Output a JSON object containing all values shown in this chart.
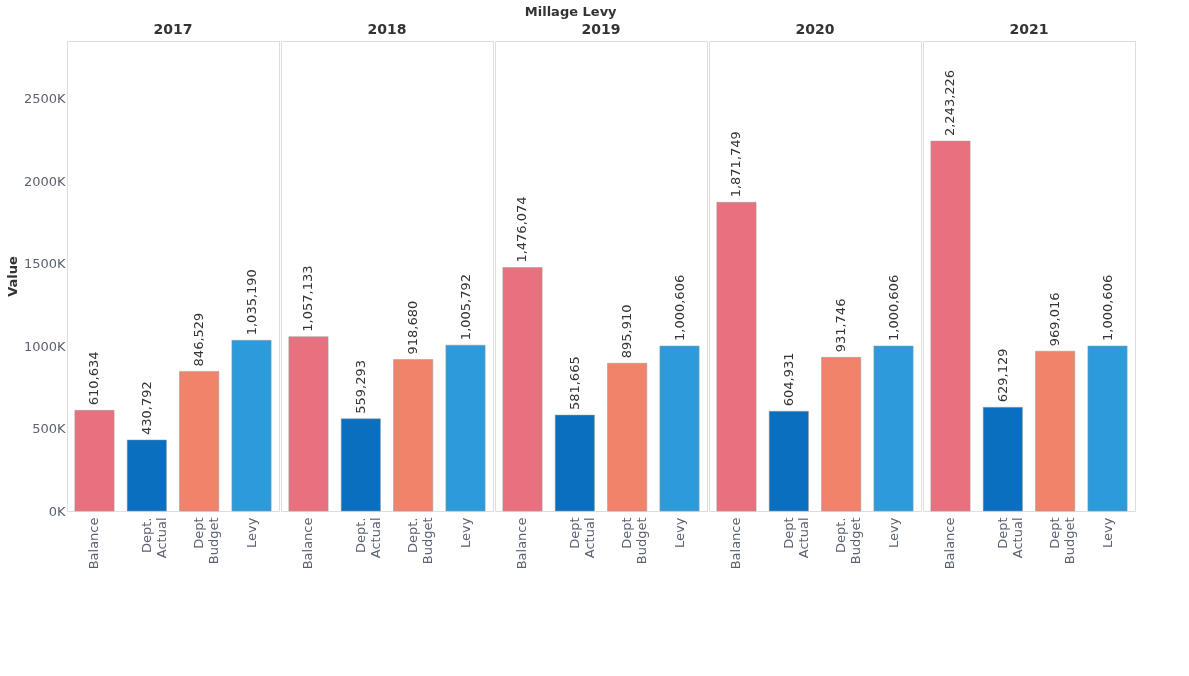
{
  "chart_data": [
    {
      "type": "bar",
      "title": "2017",
      "annotations": [
        "Millage Levy"
      ],
      "ylabel": "Value",
      "categories": [
        "Balance",
        "Dept. Actual",
        "Dept Budget",
        "Levy"
      ],
      "values": [
        610634,
        430792,
        846529,
        1035190
      ],
      "value_labels": [
        "610,634",
        "430,792",
        "846,529",
        "1,035,190"
      ],
      "colors": [
        "#e8717f",
        "#0b6fc0",
        "#f0836a",
        "#2d9bdb"
      ],
      "ylim": [
        0,
        2850000
      ],
      "yticks": [
        {
          "value": 0,
          "label": "0K"
        },
        {
          "value": 500000,
          "label": "500K"
        },
        {
          "value": 1000000,
          "label": "1000K"
        },
        {
          "value": 1500000,
          "label": "1500K"
        },
        {
          "value": 2000000,
          "label": "2000K"
        },
        {
          "value": 2500000,
          "label": "2500K"
        }
      ],
      "grid": false
    },
    {
      "type": "bar",
      "title": "2018",
      "categories": [
        "Balance",
        "Dept. Actual",
        "Dept. Budget",
        "Levy"
      ],
      "values": [
        1057133,
        559293,
        918680,
        1005792
      ],
      "value_labels": [
        "1,057,133",
        "559,293",
        "918,680",
        "1,005,792"
      ],
      "colors": [
        "#e8717f",
        "#0b6fc0",
        "#f0836a",
        "#2d9bdb"
      ],
      "ylim": [
        0,
        2850000
      ],
      "tick_labels": "x",
      "grid": false
    },
    {
      "type": "bar",
      "title": "2019",
      "categories": [
        "Balance",
        "Dept Actual",
        "Dept Budget",
        "Levy"
      ],
      "values": [
        1476074,
        581665,
        895910,
        1000606
      ],
      "value_labels": [
        "1,476,074",
        "581,665",
        "895,910",
        "1,000,606"
      ],
      "colors": [
        "#e8717f",
        "#0b6fc0",
        "#f0836a",
        "#2d9bdb"
      ],
      "ylim": [
        0,
        2850000
      ],
      "tick_labels": "x",
      "grid": false
    },
    {
      "type": "bar",
      "title": "2020",
      "categories": [
        "Balance",
        "Dept Actual",
        "Dept. Budget",
        "Levy"
      ],
      "values": [
        1871749,
        604931,
        931746,
        1000606
      ],
      "value_labels": [
        "1,871,749",
        "604,931",
        "931,746",
        "1,000,606"
      ],
      "colors": [
        "#e8717f",
        "#0b6fc0",
        "#f0836a",
        "#2d9bdb"
      ],
      "ylim": [
        0,
        2850000
      ],
      "tick_labels": "x",
      "grid": false
    },
    {
      "type": "bar",
      "title": "2021",
      "categories": [
        "Balance",
        "Dept Actual",
        "Dept Budget",
        "Levy"
      ],
      "values": [
        2243226,
        629129,
        969016,
        1000606
      ],
      "value_labels": [
        "2,243,226",
        "629,129",
        "969,016",
        "1,000,606"
      ],
      "colors": [
        "#e8717f",
        "#0b6fc0",
        "#f0836a",
        "#2d9bdb"
      ],
      "ylim": [
        0,
        2850000
      ],
      "tick_labels": "x",
      "grid": false
    }
  ]
}
